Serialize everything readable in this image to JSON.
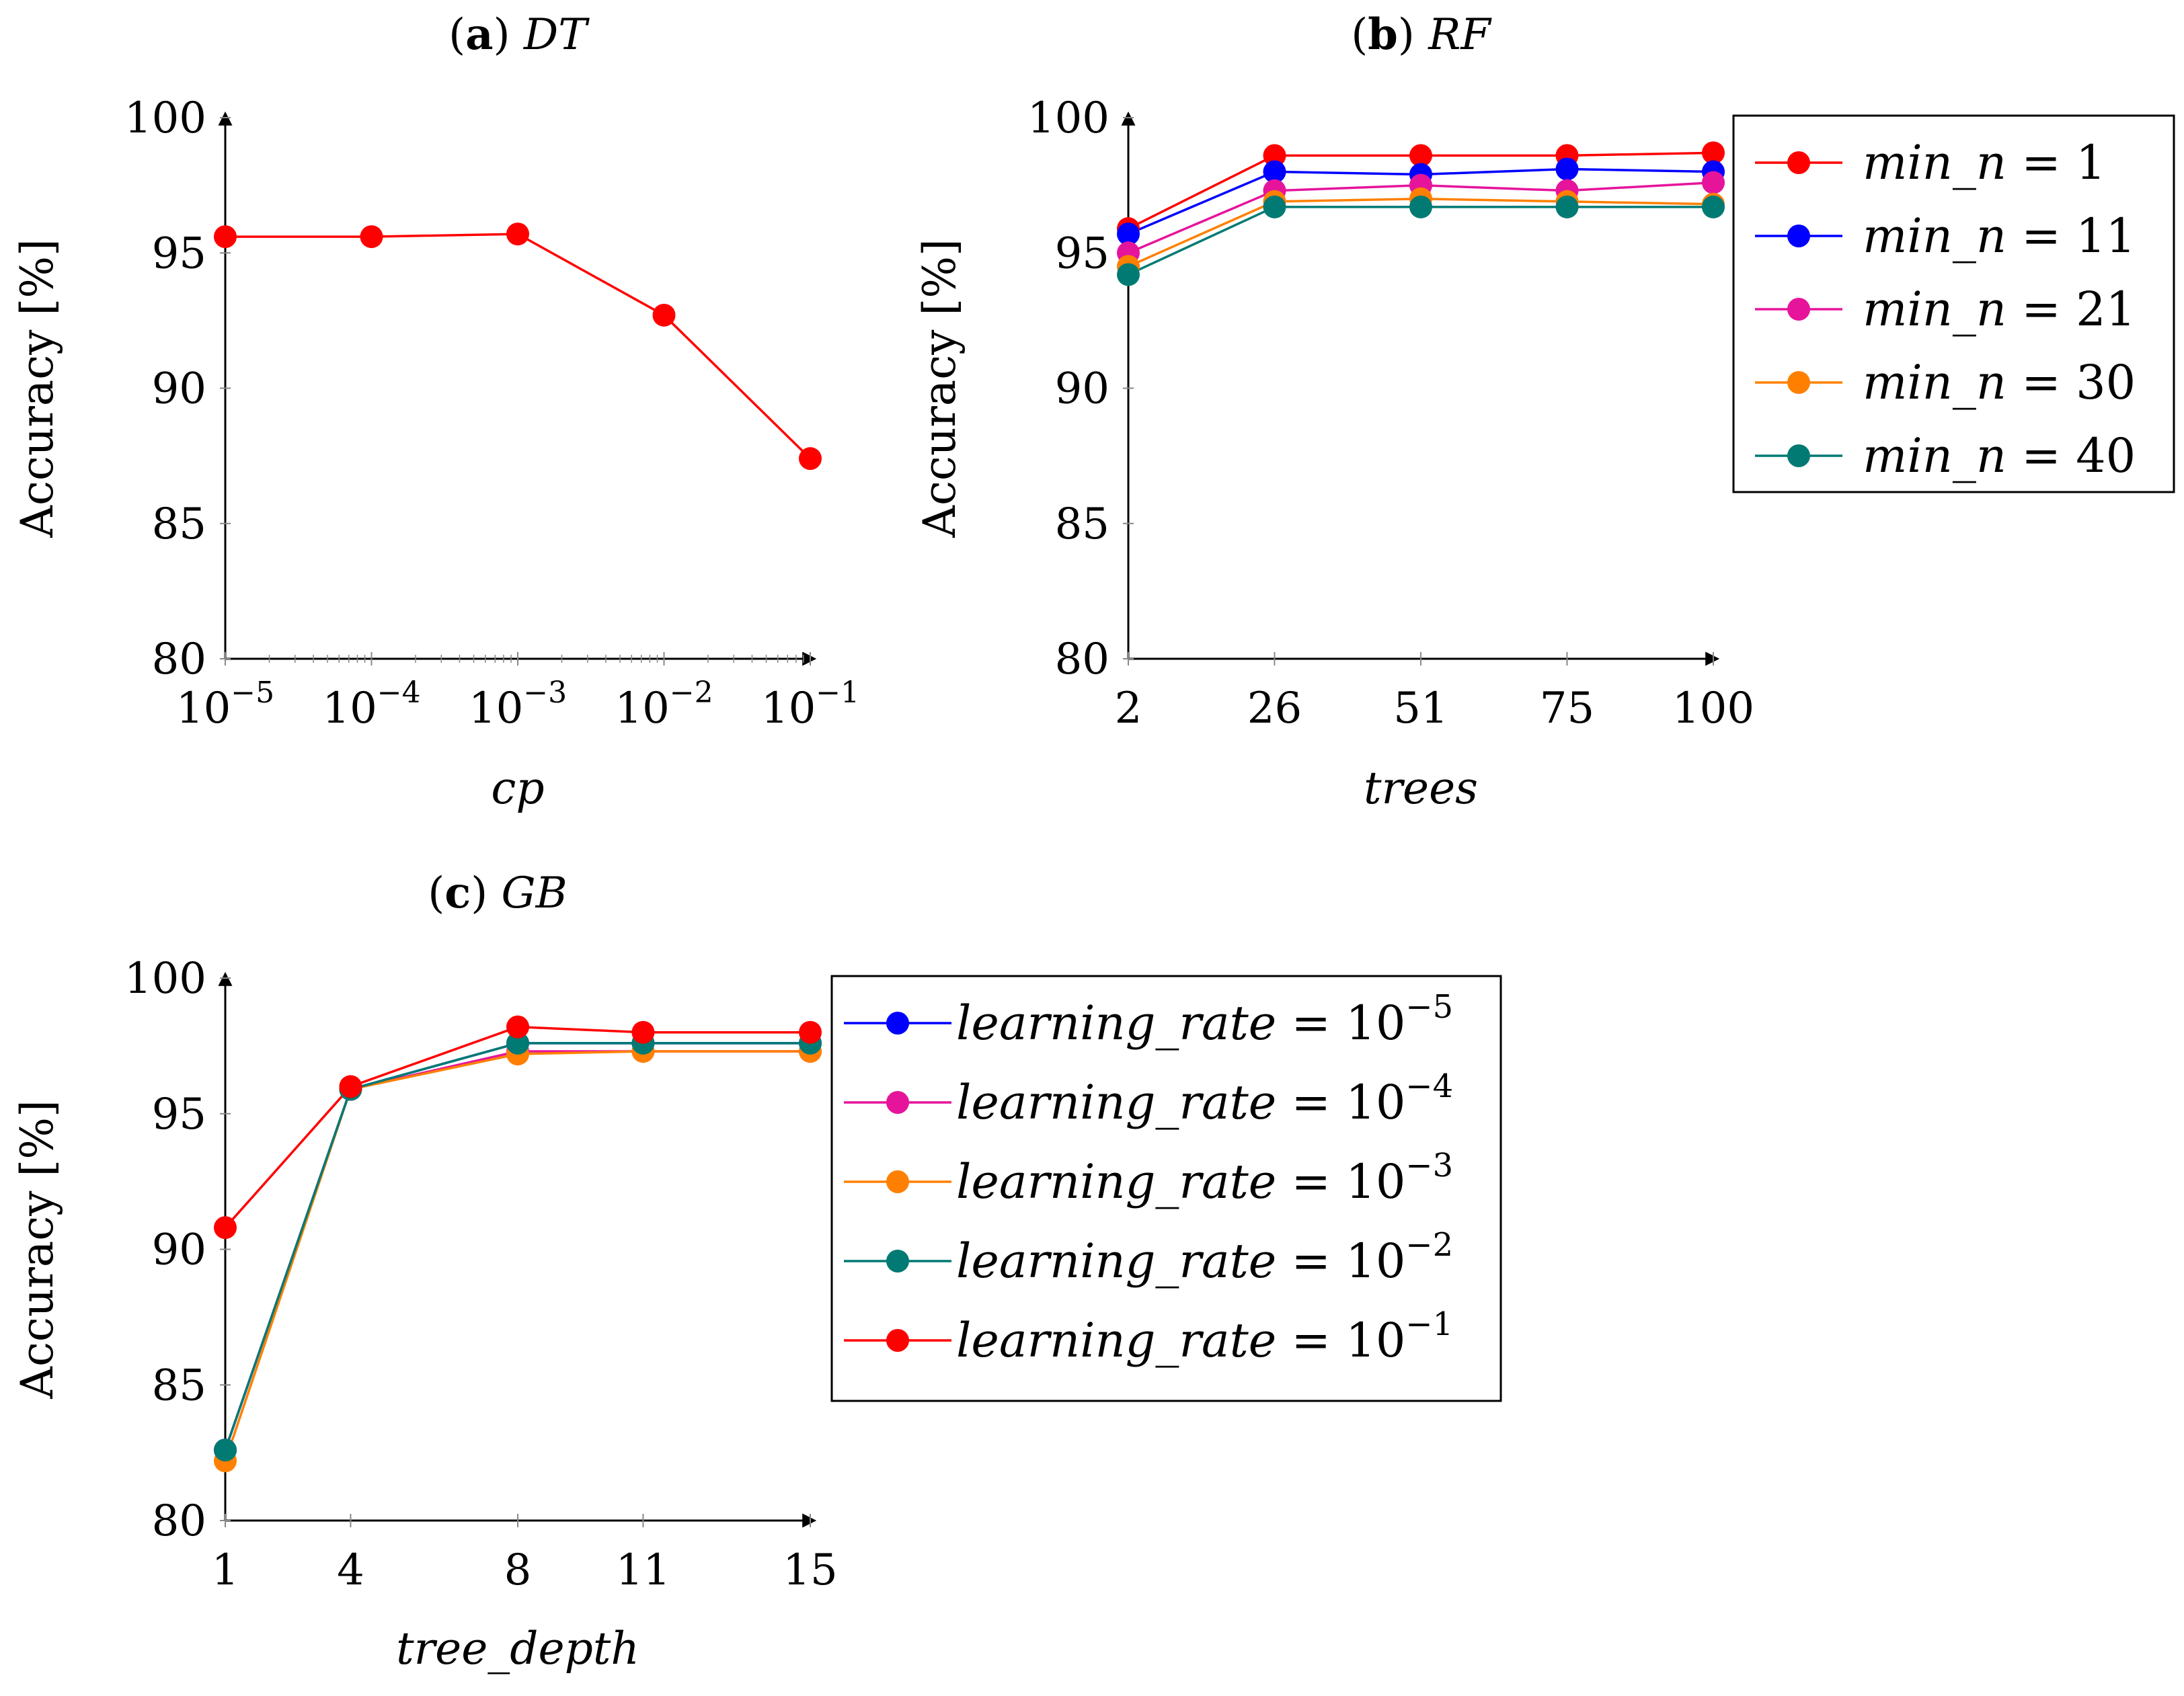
{
  "colors": {
    "red": "#ff0000",
    "blue": "#0000ff",
    "magenta": "#e6149b",
    "orange": "#ff8000",
    "teal": "#007a73"
  },
  "chart_data": [
    {
      "type": "line",
      "panel_letter": "a",
      "panel_name": "DT",
      "title": "(a) DT",
      "xlabel": "cp",
      "ylabel": "Accuracy [%]",
      "xscale": "log",
      "x": [
        1e-05,
        0.0001,
        0.001,
        0.01,
        0.1
      ],
      "xtick_labels": [
        [
          "10",
          "−5"
        ],
        [
          "10",
          "−4"
        ],
        [
          "10",
          "−3"
        ],
        [
          "10",
          "−2"
        ],
        [
          "10",
          "−1"
        ]
      ],
      "ylim": [
        80,
        100
      ],
      "yticks": [
        "80",
        "85",
        "90",
        "95",
        "100"
      ],
      "series": [
        {
          "name": "DT",
          "color": "#ff0000",
          "values": [
            95.6,
            95.6,
            95.7,
            92.7,
            87.4
          ]
        }
      ],
      "legend": "none"
    },
    {
      "type": "line",
      "panel_letter": "b",
      "panel_name": "RF",
      "title": "(b) RF",
      "xlabel": "trees",
      "ylabel": "Accuracy [%]",
      "xscale": "category",
      "x": [
        2,
        26,
        51,
        75,
        100
      ],
      "xtick_labels": [
        "2",
        "26",
        "51",
        "75",
        "100"
      ],
      "ylim": [
        80,
        100
      ],
      "yticks": [
        "80",
        "85",
        "90",
        "95",
        "100"
      ],
      "series": [
        {
          "name": "min_n = 1",
          "lhs": "min_n",
          "rhs": "1",
          "color": "#ff0000",
          "values": [
            95.9,
            98.6,
            98.6,
            98.6,
            98.7
          ]
        },
        {
          "name": "min_n = 11",
          "lhs": "min_n",
          "rhs": "11",
          "color": "#0000ff",
          "values": [
            95.7,
            98.0,
            97.9,
            98.1,
            98.0
          ]
        },
        {
          "name": "min_n = 21",
          "lhs": "min_n",
          "rhs": "21",
          "color": "#e6149b",
          "values": [
            95.0,
            97.3,
            97.5,
            97.3,
            97.6
          ]
        },
        {
          "name": "min_n = 30",
          "lhs": "min_n",
          "rhs": "30",
          "color": "#ff8000",
          "values": [
            94.5,
            96.9,
            97.0,
            96.9,
            96.8
          ]
        },
        {
          "name": "min_n = 40",
          "lhs": "min_n",
          "rhs": "40",
          "color": "#007a73",
          "values": [
            94.2,
            96.7,
            96.7,
            96.7,
            96.7
          ]
        }
      ],
      "legend": "right"
    },
    {
      "type": "line",
      "panel_letter": "c",
      "panel_name": "GB",
      "title": "(c) GB",
      "xlabel": "tree_depth",
      "ylabel": "Accuracy [%]",
      "xscale": "linear",
      "x": [
        1,
        4,
        8,
        11,
        15
      ],
      "xtick_labels": [
        "1",
        "4",
        "8",
        "11",
        "15"
      ],
      "ylim": [
        80,
        100
      ],
      "yticks": [
        "80",
        "85",
        "90",
        "95",
        "100"
      ],
      "series": [
        {
          "name": "learning_rate = 10^-5",
          "lhs": "learning_rate",
          "rhs": "10",
          "exp": "−5",
          "color": "#0000ff",
          "values": [
            82.6,
            95.9,
            97.6,
            97.6,
            97.6
          ]
        },
        {
          "name": "learning_rate = 10^-4",
          "lhs": "learning_rate",
          "rhs": "10",
          "exp": "−4",
          "color": "#e6149b",
          "values": [
            82.6,
            95.9,
            97.3,
            97.3,
            97.3
          ]
        },
        {
          "name": "learning_rate = 10^-3",
          "lhs": "learning_rate",
          "rhs": "10",
          "exp": "−3",
          "color": "#ff8000",
          "values": [
            82.2,
            95.9,
            97.2,
            97.3,
            97.3
          ]
        },
        {
          "name": "learning_rate = 10^-2",
          "lhs": "learning_rate",
          "rhs": "10",
          "exp": "−2",
          "color": "#007a73",
          "values": [
            82.6,
            95.9,
            97.6,
            97.6,
            97.6
          ]
        },
        {
          "name": "learning_rate = 10^-1",
          "lhs": "learning_rate",
          "rhs": "10",
          "exp": "−1",
          "color": "#ff0000",
          "values": [
            90.8,
            96.0,
            98.2,
            98.0,
            98.0
          ]
        }
      ],
      "legend": "right"
    }
  ]
}
